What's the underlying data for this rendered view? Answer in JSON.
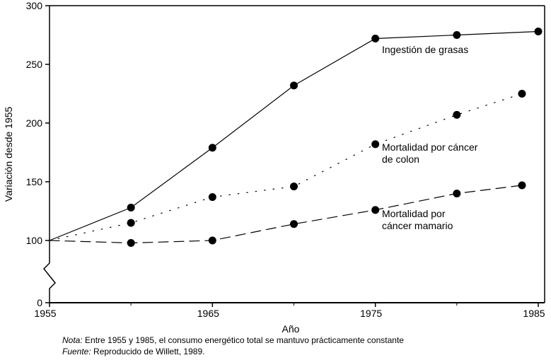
{
  "chart_data": {
    "type": "line",
    "title": "",
    "xlabel": "Año",
    "ylabel": "Variación desde 1955",
    "xlim": [
      1955,
      1985
    ],
    "ylim": [
      0,
      300
    ],
    "y_axis_break": [
      0,
      100
    ],
    "xticks": [
      "1955",
      "1965",
      "1975",
      "1985"
    ],
    "yticks": [
      "0",
      "100",
      "150",
      "200",
      "250",
      "300"
    ],
    "series": [
      {
        "name": "Ingestión de grasas",
        "style": "solid",
        "x": [
          1955,
          1960,
          1965,
          1970,
          1975,
          1980,
          1985
        ],
        "y": [
          100,
          128,
          179,
          232,
          272,
          275,
          278
        ]
      },
      {
        "name": "Mortalidad por cáncer de colon",
        "label_lines": [
          "Mortalidad por cáncer",
          "de colon"
        ],
        "style": "dotted",
        "x": [
          1955,
          1960,
          1965,
          1970,
          1975,
          1980,
          1984
        ],
        "y": [
          100,
          115,
          137,
          146,
          182,
          207,
          225
        ]
      },
      {
        "name": "Mortalidad por cáncer mamario",
        "label_lines": [
          "Mortalidad por",
          "cáncer mamario"
        ],
        "style": "dashed",
        "x": [
          1955,
          1960,
          1965,
          1970,
          1975,
          1980,
          1984
        ],
        "y": [
          100,
          96,
          100,
          114,
          126,
          140,
          147
        ]
      }
    ]
  },
  "notes": {
    "nota_label": "Nota:",
    "nota_text": " Entre 1955 y 1985, el consumo energético total se mantuvo prácticamente constante",
    "fuente_label": "Fuente:",
    "fuente_text": " Reproducido de Willett, 1989."
  }
}
